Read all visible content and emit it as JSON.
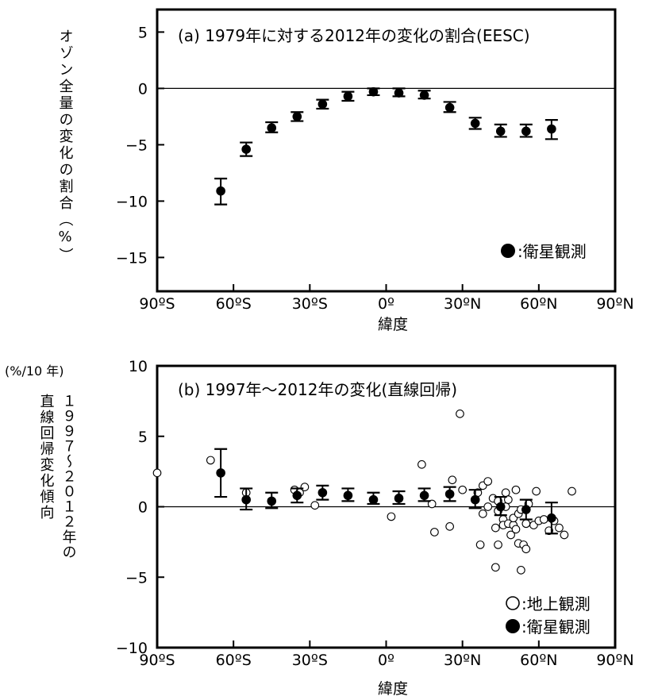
{
  "chart_data": [
    {
      "id": "a",
      "type": "scatter",
      "title": "(a) 1979年に対する2012年の変化の割合(EESC)",
      "ylabel": "オゾン全量の変化の割合（%）",
      "xlabel": "緯度",
      "xlim": [
        -90,
        90
      ],
      "ylim": [
        -18,
        7
      ],
      "xticks": [
        -90,
        -60,
        -30,
        0,
        30,
        60,
        90
      ],
      "xtick_labels": [
        "90ºS",
        "60ºS",
        "30ºS",
        "0º",
        "30ºN",
        "60ºN",
        "90ºN"
      ],
      "yticks": [
        5,
        0,
        -5,
        -10,
        -15
      ],
      "ytick_labels": [
        "5",
        "0",
        "−5",
        "−10",
        "−15"
      ],
      "zero_line": true,
      "legend": [
        {
          "symbol": "●",
          "label": ":衛星観測"
        }
      ],
      "legend_position": "bottom-right",
      "series": [
        {
          "name": "衛星観測",
          "marker": "filled-circle",
          "points": [
            {
              "x": -65,
              "y": -9.1,
              "err_low": -10.3,
              "err_high": -8.0
            },
            {
              "x": -55,
              "y": -5.4,
              "err_low": -6.0,
              "err_high": -4.8
            },
            {
              "x": -45,
              "y": -3.5,
              "err_low": -3.9,
              "err_high": -3.0
            },
            {
              "x": -35,
              "y": -2.5,
              "err_low": -2.9,
              "err_high": -2.1
            },
            {
              "x": -25,
              "y": -1.4,
              "err_low": -1.8,
              "err_high": -1.0
            },
            {
              "x": -15,
              "y": -0.7,
              "err_low": -1.1,
              "err_high": -0.3
            },
            {
              "x": -5,
              "y": -0.3,
              "err_low": -0.6,
              "err_high": 0.0
            },
            {
              "x": 5,
              "y": -0.4,
              "err_low": -0.7,
              "err_high": 0.0
            },
            {
              "x": 15,
              "y": -0.6,
              "err_low": -0.9,
              "err_high": -0.2
            },
            {
              "x": 25,
              "y": -1.7,
              "err_low": -2.1,
              "err_high": -1.2
            },
            {
              "x": 35,
              "y": -3.1,
              "err_low": -3.6,
              "err_high": -2.6
            },
            {
              "x": 45,
              "y": -3.8,
              "err_low": -4.3,
              "err_high": -3.2
            },
            {
              "x": 55,
              "y": -3.8,
              "err_low": -4.3,
              "err_high": -3.2
            },
            {
              "x": 65,
              "y": -3.6,
              "err_low": -4.5,
              "err_high": -2.8
            }
          ]
        }
      ]
    },
    {
      "id": "b",
      "type": "scatter",
      "title": "(b) 1997年〜2012年の変化(直線回帰)",
      "unit_label": "(%/10 年)",
      "ylabel": "1997〜2012年の直線回帰変化傾向",
      "ylabel_col1": "直線回帰変化傾向",
      "ylabel_col2": "１９９７〜２０１２年の",
      "xlabel": "緯度",
      "xlim": [
        -90,
        90
      ],
      "ylim": [
        -10,
        10
      ],
      "xticks": [
        -90,
        -60,
        -30,
        0,
        30,
        60,
        90
      ],
      "xtick_labels": [
        "90ºS",
        "60ºS",
        "30ºS",
        "0º",
        "30ºN",
        "60ºN",
        "90ºN"
      ],
      "yticks": [
        10,
        5,
        0,
        -5,
        -10
      ],
      "ytick_labels": [
        "10",
        "5",
        "0",
        "−5",
        "−10"
      ],
      "zero_line": true,
      "legend": [
        {
          "symbol": "○",
          "label": ":地上観測"
        },
        {
          "symbol": "●",
          "label": ":衛星観測"
        }
      ],
      "legend_position": "bottom-right",
      "series": [
        {
          "name": "地上観測",
          "marker": "open-circle",
          "points": [
            {
              "x": -90,
              "y": 2.4
            },
            {
              "x": -69,
              "y": 3.3
            },
            {
              "x": -55,
              "y": 1.0
            },
            {
              "x": -36,
              "y": 1.2
            },
            {
              "x": -34,
              "y": 1.0
            },
            {
              "x": -32,
              "y": 1.4
            },
            {
              "x": -28,
              "y": 0.1
            },
            {
              "x": 2,
              "y": -0.7
            },
            {
              "x": 14,
              "y": 3.0
            },
            {
              "x": 18,
              "y": 0.2
            },
            {
              "x": 19,
              "y": -1.8
            },
            {
              "x": 25,
              "y": -1.4
            },
            {
              "x": 26,
              "y": 1.9
            },
            {
              "x": 29,
              "y": 6.6
            },
            {
              "x": 30,
              "y": 1.2
            },
            {
              "x": 35,
              "y": 0.5
            },
            {
              "x": 36,
              "y": 1.0
            },
            {
              "x": 37,
              "y": -2.7
            },
            {
              "x": 38,
              "y": 1.5
            },
            {
              "x": 38,
              "y": -0.5
            },
            {
              "x": 40,
              "y": 1.8
            },
            {
              "x": 40,
              "y": 0.0
            },
            {
              "x": 42,
              "y": 0.6
            },
            {
              "x": 43,
              "y": -4.3
            },
            {
              "x": 43,
              "y": -1.5
            },
            {
              "x": 44,
              "y": -0.3
            },
            {
              "x": 44,
              "y": 0.4
            },
            {
              "x": 44,
              "y": -2.7
            },
            {
              "x": 46,
              "y": -0.9
            },
            {
              "x": 46,
              "y": -1.3
            },
            {
              "x": 47,
              "y": 1.0
            },
            {
              "x": 47,
              "y": 0.0
            },
            {
              "x": 48,
              "y": 0.5
            },
            {
              "x": 48,
              "y": -1.2
            },
            {
              "x": 49,
              "y": -2.0
            },
            {
              "x": 50,
              "y": -1.3
            },
            {
              "x": 50,
              "y": -0.8
            },
            {
              "x": 51,
              "y": 1.2
            },
            {
              "x": 51,
              "y": -1.6
            },
            {
              "x": 52,
              "y": -2.6
            },
            {
              "x": 52,
              "y": -0.5
            },
            {
              "x": 53,
              "y": -4.5
            },
            {
              "x": 53,
              "y": -0.2
            },
            {
              "x": 54,
              "y": -2.7
            },
            {
              "x": 55,
              "y": -3.0
            },
            {
              "x": 55,
              "y": -1.2
            },
            {
              "x": 56,
              "y": 0.2
            },
            {
              "x": 58,
              "y": -1.3
            },
            {
              "x": 59,
              "y": 1.1
            },
            {
              "x": 60,
              "y": -1.0
            },
            {
              "x": 62,
              "y": -0.9
            },
            {
              "x": 64,
              "y": -1.7
            },
            {
              "x": 66,
              "y": -1.0
            },
            {
              "x": 68,
              "y": -1.5
            },
            {
              "x": 70,
              "y": -2.0
            },
            {
              "x": 73,
              "y": 1.1
            }
          ]
        },
        {
          "name": "衛星観測",
          "marker": "filled-circle",
          "points": [
            {
              "x": -65,
              "y": 2.4,
              "err_low": 0.7,
              "err_high": 4.1
            },
            {
              "x": -55,
              "y": 0.5,
              "err_low": -0.2,
              "err_high": 1.3
            },
            {
              "x": -45,
              "y": 0.4,
              "err_low": -0.1,
              "err_high": 1.0
            },
            {
              "x": -35,
              "y": 0.8,
              "err_low": 0.3,
              "err_high": 1.3
            },
            {
              "x": -25,
              "y": 1.0,
              "err_low": 0.5,
              "err_high": 1.5
            },
            {
              "x": -15,
              "y": 0.8,
              "err_low": 0.4,
              "err_high": 1.3
            },
            {
              "x": -5,
              "y": 0.5,
              "err_low": 0.2,
              "err_high": 1.0
            },
            {
              "x": 5,
              "y": 0.6,
              "err_low": 0.2,
              "err_high": 1.1
            },
            {
              "x": 15,
              "y": 0.8,
              "err_low": 0.4,
              "err_high": 1.3
            },
            {
              "x": 25,
              "y": 0.9,
              "err_low": 0.4,
              "err_high": 1.4
            },
            {
              "x": 35,
              "y": 0.5,
              "err_low": -0.1,
              "err_high": 1.2
            },
            {
              "x": 45,
              "y": 0.0,
              "err_low": -0.6,
              "err_high": 0.7
            },
            {
              "x": 55,
              "y": -0.2,
              "err_low": -0.9,
              "err_high": 0.5
            },
            {
              "x": 65,
              "y": -0.8,
              "err_low": -1.9,
              "err_high": 0.3
            }
          ]
        }
      ]
    }
  ]
}
